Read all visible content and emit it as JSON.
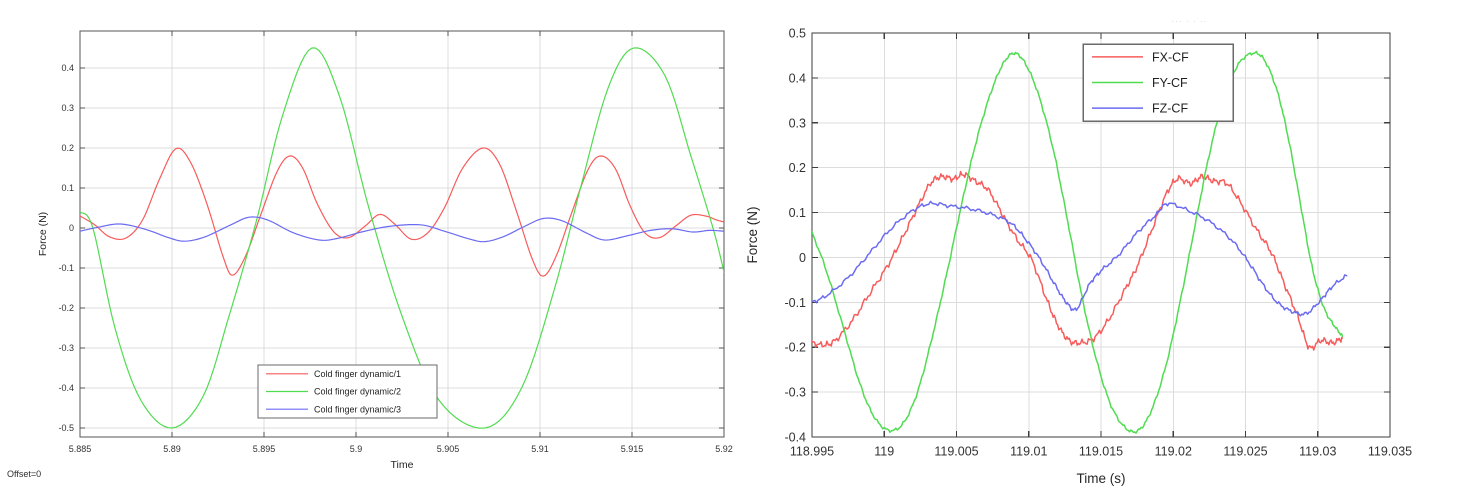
{
  "page": {
    "offset_label": "Offset=0",
    "faint_fragment": "··· ·  ·  ··"
  },
  "colors": {
    "red": "#f75c5c",
    "green": "#50dc50",
    "blue": "#6b6bf2",
    "grid": "#dcdcdc",
    "axis_left": "#565656",
    "axis_right": "#3e3e3e",
    "tick_label": "#333333",
    "legend_border": "#6a6a6a",
    "legend_bg": "#ffffff"
  },
  "chart_data": [
    {
      "type": "line",
      "title": "",
      "xlabel": "Time",
      "ylabel": "Force (N)",
      "xlim": [
        5.885,
        5.92
      ],
      "ylim": [
        -0.5225,
        0.4925
      ],
      "grid": true,
      "xticks": {
        "values": [
          5.885,
          5.89,
          5.895,
          5.9,
          5.905,
          5.91,
          5.915,
          5.92
        ],
        "labels": [
          "5.885",
          "5.89",
          "5.895",
          "5.9",
          "5.905",
          "5.91",
          "5.915",
          "5.92"
        ]
      },
      "yticks": {
        "values": [
          0.4,
          0.3,
          0.2,
          0.1,
          0,
          -0.1,
          -0.2,
          -0.3,
          -0.4,
          -0.5
        ],
        "labels": [
          "0.4",
          "0.3",
          "0.2",
          "0.1",
          "0",
          "-0.1",
          "-0.2",
          "-0.3",
          "-0.4",
          "-0.5"
        ]
      },
      "legend": {
        "position": "inside-bottom-center",
        "items": [
          "Cold finger dynamic/1",
          "Cold finger dynamic/2",
          "Cold finger dynamic/3"
        ]
      },
      "series": [
        {
          "name": "Cold finger dynamic/1",
          "color_key": "red",
          "noise": 0,
          "points": [
            [
              5.885,
              0.03
            ],
            [
              5.8858,
              0.008
            ],
            [
              5.8866,
              -0.022
            ],
            [
              5.8875,
              -0.025
            ],
            [
              5.8884,
              0.02
            ],
            [
              5.8893,
              0.12
            ],
            [
              5.8902,
              0.198
            ],
            [
              5.891,
              0.165
            ],
            [
              5.8919,
              0.06
            ],
            [
              5.8928,
              -0.075
            ],
            [
              5.8933,
              -0.118
            ],
            [
              5.894,
              -0.07
            ],
            [
              5.8948,
              0.03
            ],
            [
              5.8957,
              0.14
            ],
            [
              5.8964,
              0.18
            ],
            [
              5.8971,
              0.15
            ],
            [
              5.8979,
              0.06
            ],
            [
              5.8988,
              -0.01
            ],
            [
              5.8996,
              -0.024
            ],
            [
              5.9005,
              0.005
            ],
            [
              5.9013,
              0.034
            ],
            [
              5.9021,
              0.01
            ],
            [
              5.903,
              -0.028
            ],
            [
              5.9039,
              -0.012
            ],
            [
              5.9048,
              0.05
            ],
            [
              5.9058,
              0.15
            ],
            [
              5.9069,
              0.2
            ],
            [
              5.9078,
              0.16
            ],
            [
              5.9087,
              0.045
            ],
            [
              5.9096,
              -0.08
            ],
            [
              5.9102,
              -0.12
            ],
            [
              5.9109,
              -0.068
            ],
            [
              5.9117,
              0.035
            ],
            [
              5.9126,
              0.145
            ],
            [
              5.9133,
              0.18
            ],
            [
              5.9141,
              0.148
            ],
            [
              5.9149,
              0.055
            ],
            [
              5.9157,
              -0.012
            ],
            [
              5.9165,
              -0.024
            ],
            [
              5.9174,
              0.006
            ],
            [
              5.9182,
              0.032
            ],
            [
              5.919,
              0.03
            ],
            [
              5.9196,
              0.02
            ],
            [
              5.92,
              0.015
            ]
          ]
        },
        {
          "name": "Cold finger dynamic/2",
          "color_key": "green",
          "noise": 0,
          "points": [
            [
              5.885,
              0.04
            ],
            [
              5.8857,
              0.0
            ],
            [
              5.8869,
              -0.25
            ],
            [
              5.8883,
              -0.43
            ],
            [
              5.89,
              -0.5
            ],
            [
              5.8917,
              -0.42
            ],
            [
              5.8931,
              -0.22
            ],
            [
              5.8946,
              0.02
            ],
            [
              5.896,
              0.28
            ],
            [
              5.8976,
              0.45
            ],
            [
              5.8991,
              0.33
            ],
            [
              5.9007,
              0.05
            ],
            [
              5.9025,
              -0.22
            ],
            [
              5.9045,
              -0.43
            ],
            [
              5.907,
              -0.5
            ],
            [
              5.909,
              -0.4
            ],
            [
              5.9108,
              -0.15
            ],
            [
              5.9122,
              0.1
            ],
            [
              5.9137,
              0.35
            ],
            [
              5.9151,
              0.45
            ],
            [
              5.9168,
              0.38
            ],
            [
              5.9182,
              0.18
            ],
            [
              5.9194,
              0.0
            ],
            [
              5.92,
              -0.11
            ]
          ]
        },
        {
          "name": "Cold finger dynamic/3",
          "color_key": "blue",
          "noise": 0,
          "points": [
            [
              5.885,
              -0.008
            ],
            [
              5.886,
              0.002
            ],
            [
              5.8872,
              0.01
            ],
            [
              5.8886,
              -0.004
            ],
            [
              5.8898,
              -0.024
            ],
            [
              5.8907,
              -0.033
            ],
            [
              5.8918,
              -0.022
            ],
            [
              5.8932,
              0.008
            ],
            [
              5.8942,
              0.027
            ],
            [
              5.8952,
              0.02
            ],
            [
              5.8966,
              -0.012
            ],
            [
              5.898,
              -0.03
            ],
            [
              5.899,
              -0.026
            ],
            [
              5.9003,
              -0.01
            ],
            [
              5.9018,
              0.004
            ],
            [
              5.9035,
              0.008
            ],
            [
              5.9048,
              -0.008
            ],
            [
              5.9062,
              -0.028
            ],
            [
              5.907,
              -0.034
            ],
            [
              5.908,
              -0.022
            ],
            [
              5.9092,
              0.005
            ],
            [
              5.9102,
              0.024
            ],
            [
              5.9112,
              0.018
            ],
            [
              5.9125,
              -0.012
            ],
            [
              5.9135,
              -0.03
            ],
            [
              5.9147,
              -0.02
            ],
            [
              5.916,
              -0.006
            ],
            [
              5.9172,
              -0.002
            ],
            [
              5.9183,
              -0.01
            ],
            [
              5.9192,
              -0.006
            ],
            [
              5.92,
              -0.008
            ]
          ]
        }
      ]
    },
    {
      "type": "line",
      "title": "",
      "xlabel": "Time (s)",
      "ylabel": "Force (N)",
      "xlim": [
        118.995,
        119.035
      ],
      "ylim": [
        -0.4,
        0.5
      ],
      "grid": true,
      "xticks": {
        "values": [
          118.995,
          119,
          119.005,
          119.01,
          119.015,
          119.02,
          119.025,
          119.03,
          119.035
        ],
        "labels": [
          "118.995",
          "119",
          "119.005",
          "119.01",
          "119.015",
          "119.02",
          "119.025",
          "119.03",
          "119.035"
        ]
      },
      "yticks": {
        "values": [
          0.5,
          0.4,
          0.3,
          0.2,
          0.1,
          0,
          -0.1,
          -0.2,
          -0.3,
          -0.4
        ],
        "labels": [
          "0.5",
          "0.4",
          "0.3",
          "0.2",
          "0.1",
          "0",
          "-0.1",
          "-0.2",
          "-0.3",
          "-0.4"
        ]
      },
      "legend": {
        "position": "inside-top-center",
        "items": [
          "FX-CF",
          "FY-CF",
          "FZ-CF"
        ]
      },
      "series": [
        {
          "name": "FX-CF",
          "color_key": "red",
          "noise": 0.008,
          "points": [
            [
              118.995,
              -0.19
            ],
            [
              118.9958,
              -0.195
            ],
            [
              118.9966,
              -0.185
            ],
            [
              118.9978,
              -0.14
            ],
            [
              118.999,
              -0.08
            ],
            [
              119.0002,
              -0.02
            ],
            [
              119.0012,
              0.04
            ],
            [
              119.0022,
              0.105
            ],
            [
              119.0032,
              0.165
            ],
            [
              119.004,
              0.18
            ],
            [
              119.0048,
              0.175
            ],
            [
              119.0055,
              0.185
            ],
            [
              119.0063,
              0.17
            ],
            [
              119.0072,
              0.15
            ],
            [
              119.0082,
              0.095
            ],
            [
              119.0092,
              0.04
            ],
            [
              119.0102,
              -0.005
            ],
            [
              119.0112,
              -0.09
            ],
            [
              119.012,
              -0.15
            ],
            [
              119.0128,
              -0.185
            ],
            [
              119.0136,
              -0.19
            ],
            [
              119.0145,
              -0.18
            ],
            [
              119.0155,
              -0.14
            ],
            [
              119.0166,
              -0.075
            ],
            [
              119.0175,
              -0.02
            ],
            [
              119.0185,
              0.06
            ],
            [
              119.0195,
              0.14
            ],
            [
              119.0203,
              0.175
            ],
            [
              119.0212,
              0.165
            ],
            [
              119.022,
              0.18
            ],
            [
              119.0228,
              0.17
            ],
            [
              119.0237,
              0.165
            ],
            [
              119.0247,
              0.12
            ],
            [
              119.0258,
              0.06
            ],
            [
              119.0268,
              0.01
            ],
            [
              119.0277,
              -0.06
            ],
            [
              119.0286,
              -0.13
            ],
            [
              119.0294,
              -0.2
            ],
            [
              119.0302,
              -0.185
            ],
            [
              119.031,
              -0.19
            ],
            [
              119.0317,
              -0.18
            ]
          ]
        },
        {
          "name": "FY-CF",
          "color_key": "green",
          "noise": 0.004,
          "points": [
            [
              118.995,
              0.055
            ],
            [
              118.996,
              -0.03
            ],
            [
              118.9972,
              -0.16
            ],
            [
              118.9983,
              -0.28
            ],
            [
              118.9993,
              -0.355
            ],
            [
              119.0003,
              -0.385
            ],
            [
              119.0013,
              -0.37
            ],
            [
              119.0023,
              -0.3
            ],
            [
              119.0033,
              -0.18
            ],
            [
              119.0043,
              -0.04
            ],
            [
              119.0053,
              0.11
            ],
            [
              119.0063,
              0.25
            ],
            [
              119.0073,
              0.36
            ],
            [
              119.0082,
              0.43
            ],
            [
              119.009,
              0.455
            ],
            [
              119.0098,
              0.43
            ],
            [
              119.0107,
              0.36
            ],
            [
              119.0117,
              0.24
            ],
            [
              119.0127,
              0.08
            ],
            [
              119.0137,
              -0.09
            ],
            [
              119.0147,
              -0.23
            ],
            [
              119.0157,
              -0.33
            ],
            [
              119.0167,
              -0.38
            ],
            [
              119.0176,
              -0.385
            ],
            [
              119.0185,
              -0.34
            ],
            [
              119.0195,
              -0.24
            ],
            [
              119.0205,
              -0.095
            ],
            [
              119.0215,
              0.07
            ],
            [
              119.0225,
              0.23
            ],
            [
              119.0235,
              0.355
            ],
            [
              119.0245,
              0.43
            ],
            [
              119.0255,
              0.455
            ],
            [
              119.0263,
              0.44
            ],
            [
              119.0272,
              0.37
            ],
            [
              119.028,
              0.26
            ],
            [
              119.0288,
              0.12
            ],
            [
              119.0296,
              -0.02
            ],
            [
              119.0304,
              -0.11
            ],
            [
              119.0311,
              -0.15
            ],
            [
              119.0317,
              -0.175
            ]
          ]
        },
        {
          "name": "FZ-CF",
          "color_key": "blue",
          "noise": 0.005,
          "points": [
            [
              118.995,
              -0.1
            ],
            [
              118.996,
              -0.085
            ],
            [
              118.9975,
              -0.045
            ],
            [
              118.999,
              0.01
            ],
            [
              119.0005,
              0.065
            ],
            [
              119.002,
              0.105
            ],
            [
              119.0032,
              0.12
            ],
            [
              119.0045,
              0.115
            ],
            [
              119.006,
              0.108
            ],
            [
              119.0075,
              0.095
            ],
            [
              119.0088,
              0.075
            ],
            [
              119.0098,
              0.04
            ],
            [
              119.0108,
              -0.005
            ],
            [
              119.0118,
              -0.06
            ],
            [
              119.0126,
              -0.1
            ],
            [
              119.0133,
              -0.115
            ],
            [
              119.0142,
              -0.06
            ],
            [
              119.015,
              -0.03
            ],
            [
              119.0162,
              0.005
            ],
            [
              119.0175,
              0.055
            ],
            [
              119.0188,
              0.095
            ],
            [
              119.0196,
              0.12
            ],
            [
              119.021,
              0.105
            ],
            [
              119.0225,
              0.08
            ],
            [
              119.024,
              0.04
            ],
            [
              119.0252,
              -0.01
            ],
            [
              119.0262,
              -0.06
            ],
            [
              119.0272,
              -0.1
            ],
            [
              119.0282,
              -0.12
            ],
            [
              119.0292,
              -0.125
            ],
            [
              119.0302,
              -0.095
            ],
            [
              119.031,
              -0.065
            ],
            [
              119.032,
              -0.04
            ]
          ]
        }
      ]
    }
  ]
}
